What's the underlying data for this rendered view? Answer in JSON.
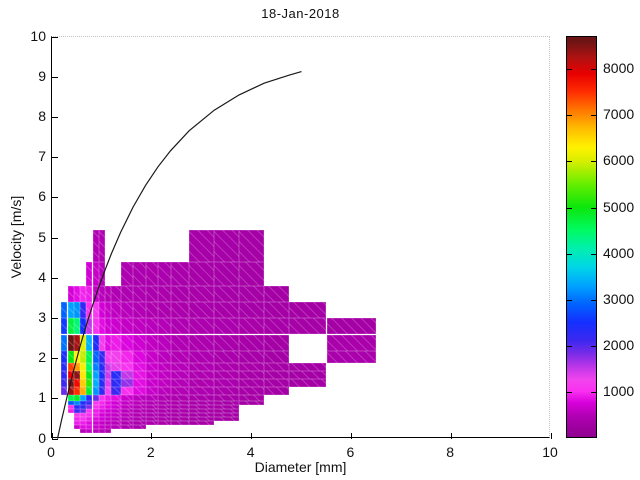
{
  "title": "18-Jan-2018",
  "axes": {
    "xlabel": "Diameter [mm]",
    "ylabel": "Velocity [m/s]",
    "x_ticks": [
      0,
      2,
      4,
      6,
      8,
      10
    ],
    "y_ticks": [
      0,
      1,
      2,
      3,
      4,
      5,
      6,
      7,
      8,
      9,
      10
    ],
    "xlim": [
      0,
      10
    ],
    "ylim": [
      0,
      10
    ]
  },
  "colorbar": {
    "ticks": [
      1000,
      2000,
      3000,
      4000,
      5000,
      6000,
      7000,
      8000
    ],
    "vmin": 0,
    "vmax": 8700,
    "colormap_stops": [
      [
        0,
        "#8F008F"
      ],
      [
        450,
        "#B000B2"
      ],
      [
        750,
        "#D800DC"
      ],
      [
        1000,
        "#FA30F0"
      ],
      [
        1250,
        "#F044EE"
      ],
      [
        1500,
        "#C238E8"
      ],
      [
        1800,
        "#7C2CE8"
      ],
      [
        2100,
        "#3C28F0"
      ],
      [
        2500,
        "#1430FF"
      ],
      [
        2900,
        "#0064FF"
      ],
      [
        3300,
        "#00A4FF"
      ],
      [
        3700,
        "#00D6E6"
      ],
      [
        4100,
        "#00EFAE"
      ],
      [
        4500,
        "#00FB62"
      ],
      [
        5000,
        "#0CE60C"
      ],
      [
        5500,
        "#66EE00"
      ],
      [
        6000,
        "#D8EE00"
      ],
      [
        6300,
        "#FFF200"
      ],
      [
        6700,
        "#FFBE00"
      ],
      [
        7100,
        "#FF7800"
      ],
      [
        7500,
        "#FF2E00"
      ],
      [
        7900,
        "#E80000"
      ],
      [
        8250,
        "#B01212"
      ],
      [
        8600,
        "#6E1414"
      ]
    ]
  },
  "chart_data": {
    "type": "heatmap",
    "title": "18-Jan-2018",
    "xlabel": "Diameter [mm]",
    "ylabel": "Velocity [m/s]",
    "xlim": [
      0,
      10
    ],
    "ylim": [
      0,
      10
    ],
    "grid": false,
    "legend": "colorbar-right",
    "d_edges": [
      0.187,
      0.312,
      0.437,
      0.562,
      0.687,
      0.812,
      0.937,
      1.062,
      1.187,
      1.375,
      1.625,
      1.875,
      2.125,
      2.375,
      2.75,
      3.25,
      3.75,
      4.25,
      4.75,
      5.5,
      6.5
    ],
    "v_edges": [
      0.15,
      0.25,
      0.35,
      0.45,
      0.55,
      0.65,
      0.75,
      0.85,
      0.95,
      1.1,
      1.3,
      1.5,
      1.7,
      1.9,
      2.2,
      2.6,
      3.0,
      3.4,
      3.8,
      4.4,
      5.2
    ],
    "cells": [
      [
        3,
        0,
        500
      ],
      [
        4,
        0,
        600
      ],
      [
        5,
        0,
        550
      ],
      [
        6,
        0,
        500
      ],
      [
        7,
        0,
        450
      ],
      [
        2,
        1,
        650
      ],
      [
        3,
        1,
        800
      ],
      [
        4,
        1,
        800
      ],
      [
        5,
        1,
        700
      ],
      [
        6,
        1,
        600
      ],
      [
        7,
        1,
        550
      ],
      [
        8,
        1,
        500
      ],
      [
        9,
        1,
        420
      ],
      [
        10,
        1,
        380
      ],
      [
        2,
        2,
        900
      ],
      [
        3,
        2,
        900
      ],
      [
        4,
        2,
        800
      ],
      [
        5,
        2,
        700
      ],
      [
        6,
        2,
        600
      ],
      [
        7,
        2,
        550
      ],
      [
        8,
        2,
        500
      ],
      [
        9,
        2,
        450
      ],
      [
        10,
        2,
        400
      ],
      [
        11,
        2,
        380
      ],
      [
        12,
        2,
        360
      ],
      [
        13,
        2,
        330
      ],
      [
        14,
        2,
        310
      ],
      [
        2,
        3,
        950
      ],
      [
        3,
        3,
        1020
      ],
      [
        4,
        3,
        900
      ],
      [
        5,
        3,
        800
      ],
      [
        6,
        3,
        700
      ],
      [
        7,
        3,
        620
      ],
      [
        8,
        3,
        560
      ],
      [
        9,
        3,
        500
      ],
      [
        10,
        3,
        450
      ],
      [
        11,
        3,
        410
      ],
      [
        12,
        3,
        380
      ],
      [
        13,
        3,
        350
      ],
      [
        14,
        3,
        320
      ],
      [
        15,
        3,
        300
      ],
      [
        2,
        4,
        1100
      ],
      [
        3,
        4,
        1150
      ],
      [
        4,
        4,
        1000
      ],
      [
        5,
        4,
        900
      ],
      [
        6,
        4,
        720
      ],
      [
        7,
        4,
        650
      ],
      [
        8,
        4,
        600
      ],
      [
        9,
        4,
        520
      ],
      [
        10,
        4,
        460
      ],
      [
        11,
        4,
        420
      ],
      [
        12,
        4,
        400
      ],
      [
        13,
        4,
        360
      ],
      [
        14,
        4,
        330
      ],
      [
        15,
        4,
        310
      ],
      [
        1,
        5,
        900
      ],
      [
        2,
        5,
        2100
      ],
      [
        3,
        5,
        1900
      ],
      [
        4,
        5,
        1100
      ],
      [
        5,
        5,
        900
      ],
      [
        6,
        5,
        800
      ],
      [
        7,
        5,
        700
      ],
      [
        8,
        5,
        620
      ],
      [
        9,
        5,
        520
      ],
      [
        10,
        5,
        470
      ],
      [
        11,
        5,
        430
      ],
      [
        12,
        5,
        400
      ],
      [
        13,
        5,
        370
      ],
      [
        14,
        5,
        340
      ],
      [
        15,
        5,
        310
      ],
      [
        1,
        6,
        1000
      ],
      [
        2,
        6,
        2300
      ],
      [
        3,
        6,
        2200
      ],
      [
        4,
        6,
        1800
      ],
      [
        5,
        6,
        1000
      ],
      [
        6,
        6,
        900
      ],
      [
        7,
        6,
        800
      ],
      [
        8,
        6,
        700
      ],
      [
        9,
        6,
        560
      ],
      [
        10,
        6,
        500
      ],
      [
        11,
        6,
        450
      ],
      [
        12,
        6,
        410
      ],
      [
        13,
        6,
        390
      ],
      [
        14,
        6,
        350
      ],
      [
        15,
        6,
        320
      ],
      [
        1,
        7,
        2800
      ],
      [
        2,
        7,
        3100
      ],
      [
        3,
        7,
        2400
      ],
      [
        4,
        7,
        2100
      ],
      [
        5,
        7,
        1100
      ],
      [
        6,
        7,
        950
      ],
      [
        7,
        7,
        820
      ],
      [
        8,
        7,
        700
      ],
      [
        9,
        7,
        600
      ],
      [
        10,
        7,
        510
      ],
      [
        11,
        7,
        460
      ],
      [
        12,
        7,
        420
      ],
      [
        13,
        7,
        400
      ],
      [
        14,
        7,
        360
      ],
      [
        15,
        7,
        320
      ],
      [
        16,
        7,
        300
      ],
      [
        1,
        8,
        4600
      ],
      [
        2,
        8,
        4800
      ],
      [
        3,
        8,
        3300
      ],
      [
        4,
        8,
        2300
      ],
      [
        5,
        8,
        1900
      ],
      [
        6,
        8,
        1050
      ],
      [
        7,
        8,
        900
      ],
      [
        8,
        8,
        820
      ],
      [
        9,
        8,
        650
      ],
      [
        10,
        8,
        550
      ],
      [
        11,
        8,
        500
      ],
      [
        12,
        8,
        450
      ],
      [
        13,
        8,
        410
      ],
      [
        14,
        8,
        370
      ],
      [
        15,
        8,
        330
      ],
      [
        16,
        8,
        310
      ],
      [
        0,
        9,
        1900
      ],
      [
        1,
        9,
        8300
      ],
      [
        2,
        9,
        7500
      ],
      [
        3,
        9,
        6800
      ],
      [
        4,
        9,
        4800
      ],
      [
        5,
        9,
        3200
      ],
      [
        6,
        9,
        2200
      ],
      [
        7,
        9,
        1250
      ],
      [
        8,
        9,
        2100
      ],
      [
        9,
        9,
        1000
      ],
      [
        10,
        9,
        800
      ],
      [
        11,
        9,
        620
      ],
      [
        12,
        9,
        530
      ],
      [
        13,
        9,
        470
      ],
      [
        14,
        9,
        420
      ],
      [
        15,
        9,
        370
      ],
      [
        16,
        9,
        330
      ],
      [
        17,
        9,
        300
      ],
      [
        0,
        10,
        2100
      ],
      [
        1,
        10,
        8550
      ],
      [
        2,
        10,
        7800
      ],
      [
        3,
        10,
        6600
      ],
      [
        4,
        10,
        5200
      ],
      [
        5,
        10,
        3400
      ],
      [
        6,
        10,
        2300
      ],
      [
        7,
        10,
        1350
      ],
      [
        8,
        10,
        2250
      ],
      [
        9,
        10,
        1700
      ],
      [
        10,
        10,
        820
      ],
      [
        11,
        10,
        640
      ],
      [
        12,
        10,
        560
      ],
      [
        13,
        10,
        480
      ],
      [
        14,
        10,
        430
      ],
      [
        15,
        10,
        380
      ],
      [
        16,
        10,
        340
      ],
      [
        17,
        10,
        310
      ],
      [
        18,
        10,
        290
      ],
      [
        0,
        11,
        2200
      ],
      [
        1,
        11,
        7900
      ],
      [
        2,
        11,
        8450
      ],
      [
        3,
        11,
        6400
      ],
      [
        4,
        11,
        4900
      ],
      [
        5,
        11,
        3300
      ],
      [
        6,
        11,
        2400
      ],
      [
        7,
        11,
        1450
      ],
      [
        8,
        11,
        2300
      ],
      [
        9,
        11,
        1500
      ],
      [
        10,
        11,
        850
      ],
      [
        11,
        11,
        660
      ],
      [
        12,
        11,
        570
      ],
      [
        13,
        11,
        500
      ],
      [
        14,
        11,
        440
      ],
      [
        15,
        11,
        390
      ],
      [
        16,
        11,
        340
      ],
      [
        17,
        11,
        310
      ],
      [
        18,
        11,
        290
      ],
      [
        0,
        12,
        2300
      ],
      [
        1,
        12,
        7400
      ],
      [
        2,
        12,
        6900
      ],
      [
        3,
        12,
        6200
      ],
      [
        4,
        12,
        4500
      ],
      [
        5,
        12,
        3100
      ],
      [
        6,
        12,
        2300
      ],
      [
        7,
        12,
        1450
      ],
      [
        8,
        12,
        1300
      ],
      [
        9,
        12,
        1050
      ],
      [
        10,
        12,
        830
      ],
      [
        11,
        12,
        650
      ],
      [
        12,
        12,
        560
      ],
      [
        13,
        12,
        500
      ],
      [
        14,
        12,
        440
      ],
      [
        15,
        12,
        390
      ],
      [
        16,
        12,
        350
      ],
      [
        17,
        12,
        310
      ],
      [
        18,
        12,
        290
      ],
      [
        0,
        13,
        2450
      ],
      [
        1,
        13,
        5000
      ],
      [
        2,
        13,
        6300
      ],
      [
        3,
        13,
        5900
      ],
      [
        4,
        13,
        4600
      ],
      [
        5,
        13,
        2900
      ],
      [
        6,
        13,
        2200
      ],
      [
        7,
        13,
        1150
      ],
      [
        8,
        13,
        1200
      ],
      [
        9,
        13,
        950
      ],
      [
        10,
        13,
        780
      ],
      [
        11,
        13,
        620
      ],
      [
        12,
        13,
        530
      ],
      [
        13,
        13,
        470
      ],
      [
        14,
        13,
        420
      ],
      [
        15,
        13,
        370
      ],
      [
        16,
        13,
        330
      ],
      [
        17,
        13,
        300
      ],
      [
        19,
        13,
        360
      ],
      [
        0,
        14,
        3000
      ],
      [
        1,
        14,
        8600
      ],
      [
        2,
        14,
        8300
      ],
      [
        3,
        14,
        6100
      ],
      [
        4,
        14,
        3400
      ],
      [
        5,
        14,
        2400
      ],
      [
        6,
        14,
        1150
      ],
      [
        7,
        14,
        820
      ],
      [
        8,
        14,
        900
      ],
      [
        9,
        14,
        780
      ],
      [
        10,
        14,
        680
      ],
      [
        11,
        14,
        580
      ],
      [
        12,
        14,
        520
      ],
      [
        13,
        14,
        460
      ],
      [
        14,
        14,
        410
      ],
      [
        15,
        14,
        360
      ],
      [
        16,
        14,
        330
      ],
      [
        17,
        14,
        300
      ],
      [
        19,
        14,
        360
      ],
      [
        0,
        15,
        2600
      ],
      [
        1,
        15,
        4700
      ],
      [
        2,
        15,
        4400
      ],
      [
        3,
        15,
        2500
      ],
      [
        4,
        15,
        1500
      ],
      [
        5,
        15,
        1020
      ],
      [
        6,
        15,
        820
      ],
      [
        7,
        15,
        700
      ],
      [
        8,
        15,
        660
      ],
      [
        9,
        15,
        600
      ],
      [
        10,
        15,
        560
      ],
      [
        11,
        15,
        520
      ],
      [
        12,
        15,
        480
      ],
      [
        13,
        15,
        440
      ],
      [
        14,
        15,
        410
      ],
      [
        15,
        15,
        380
      ],
      [
        16,
        15,
        350
      ],
      [
        17,
        15,
        330
      ],
      [
        18,
        15,
        310
      ],
      [
        19,
        15,
        300
      ],
      [
        0,
        16,
        2900
      ],
      [
        1,
        16,
        3300
      ],
      [
        2,
        16,
        3200
      ],
      [
        3,
        16,
        2200
      ],
      [
        4,
        16,
        1020
      ],
      [
        5,
        16,
        1120
      ],
      [
        6,
        16,
        720
      ],
      [
        7,
        16,
        620
      ],
      [
        8,
        16,
        560
      ],
      [
        9,
        16,
        520
      ],
      [
        10,
        16,
        470
      ],
      [
        11,
        16,
        430
      ],
      [
        12,
        16,
        410
      ],
      [
        13,
        16,
        390
      ],
      [
        14,
        16,
        360
      ],
      [
        15,
        16,
        340
      ],
      [
        16,
        16,
        320
      ],
      [
        17,
        16,
        300
      ],
      [
        18,
        16,
        290
      ],
      [
        1,
        17,
        720
      ],
      [
        2,
        17,
        820
      ],
      [
        3,
        17,
        950
      ],
      [
        4,
        17,
        900
      ],
      [
        5,
        17,
        620
      ],
      [
        6,
        17,
        520
      ],
      [
        7,
        17,
        490
      ],
      [
        8,
        17,
        460
      ],
      [
        9,
        17,
        440
      ],
      [
        10,
        17,
        420
      ],
      [
        11,
        17,
        400
      ],
      [
        12,
        17,
        390
      ],
      [
        13,
        17,
        370
      ],
      [
        14,
        17,
        350
      ],
      [
        15,
        17,
        330
      ],
      [
        16,
        17,
        310
      ],
      [
        17,
        17,
        300
      ],
      [
        4,
        18,
        700
      ],
      [
        5,
        18,
        620
      ],
      [
        6,
        18,
        520
      ],
      [
        9,
        18,
        420
      ],
      [
        10,
        18,
        400
      ],
      [
        11,
        18,
        390
      ],
      [
        12,
        18,
        380
      ],
      [
        13,
        18,
        360
      ],
      [
        14,
        18,
        340
      ],
      [
        15,
        18,
        320
      ],
      [
        16,
        18,
        310
      ],
      [
        5,
        19,
        470
      ],
      [
        6,
        19,
        470
      ],
      [
        14,
        19,
        340
      ],
      [
        15,
        19,
        320
      ],
      [
        16,
        19,
        310
      ]
    ],
    "curve": {
      "name": "raindrop-terminal-velocity-curve",
      "points": [
        [
          0.11,
          0.01
        ],
        [
          0.187,
          0.44
        ],
        [
          0.312,
          1.11
        ],
        [
          0.437,
          1.72
        ],
        [
          0.562,
          2.3
        ],
        [
          0.687,
          2.83
        ],
        [
          0.812,
          3.32
        ],
        [
          0.937,
          3.78
        ],
        [
          1.062,
          4.2
        ],
        [
          1.187,
          4.6
        ],
        [
          1.375,
          5.14
        ],
        [
          1.625,
          5.77
        ],
        [
          1.875,
          6.31
        ],
        [
          2.125,
          6.77
        ],
        [
          2.375,
          7.17
        ],
        [
          2.75,
          7.67
        ],
        [
          3.25,
          8.18
        ],
        [
          3.75,
          8.56
        ],
        [
          4.25,
          8.85
        ],
        [
          4.75,
          9.05
        ],
        [
          5.0,
          9.14
        ]
      ]
    }
  }
}
